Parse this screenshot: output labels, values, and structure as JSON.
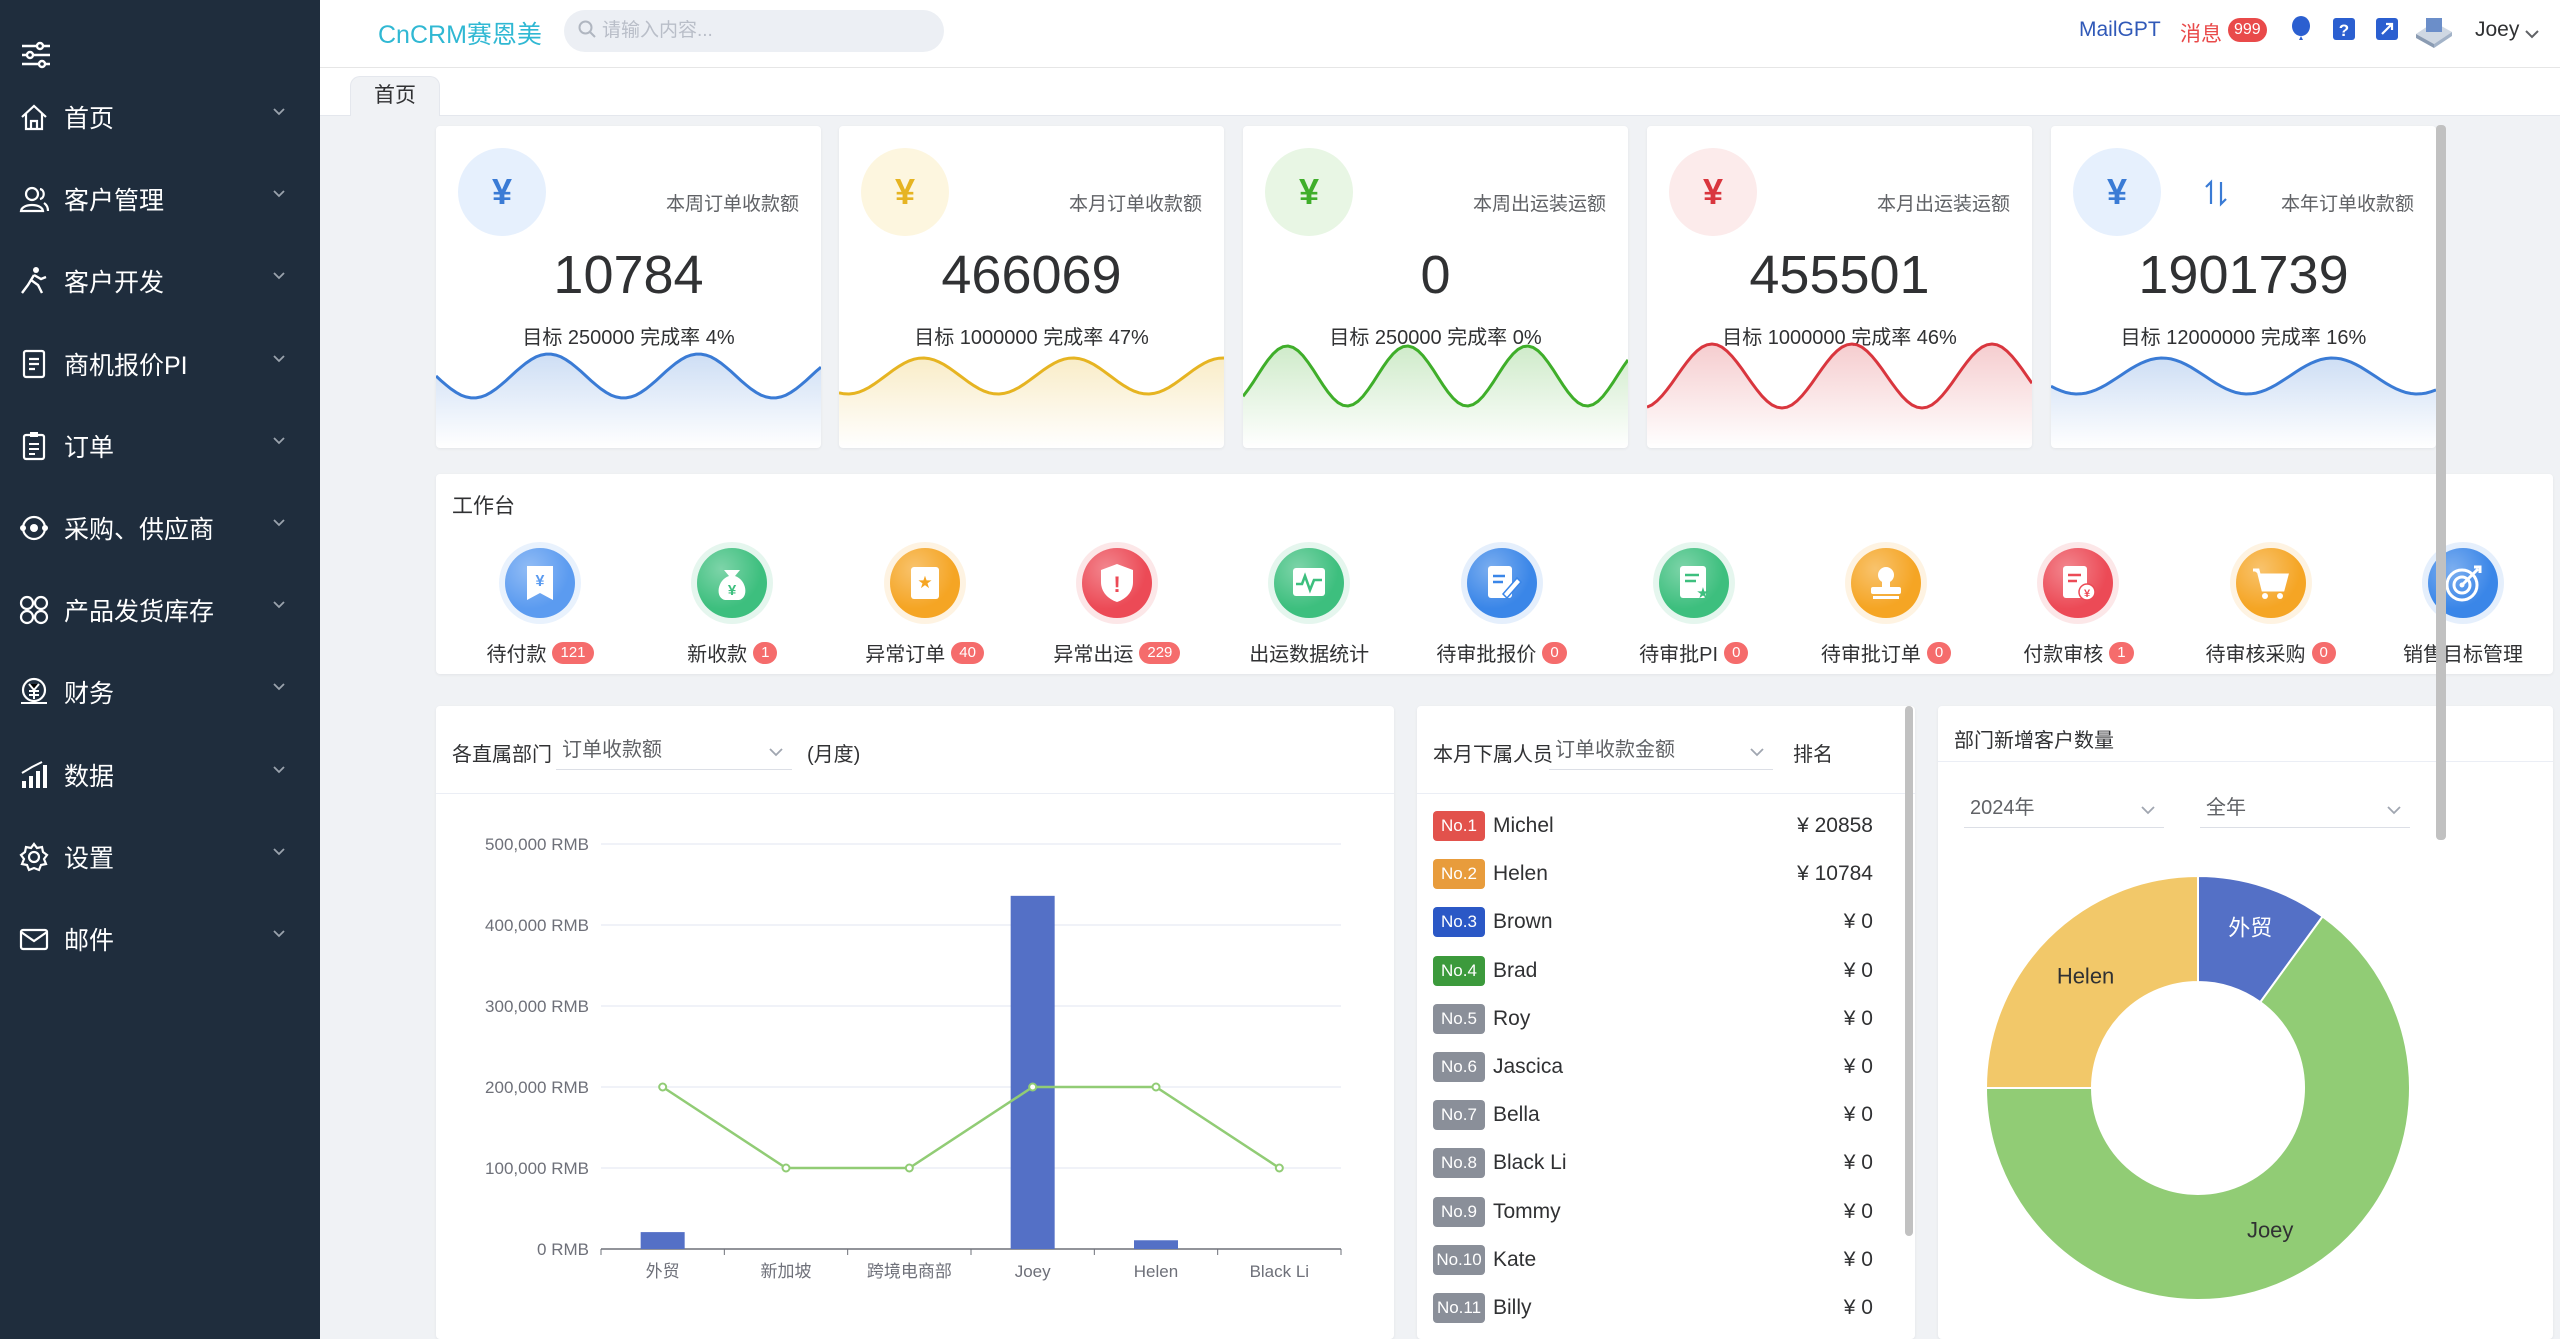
{
  "app": {
    "logo": "CnCRM赛恩美"
  },
  "search": {
    "placeholder": "请输入内容..."
  },
  "header": {
    "mailgpt": "MailGPT",
    "msg_label": "消息",
    "msg_count": "999",
    "user": "Joey"
  },
  "sidebar": {
    "items": [
      {
        "label": "首页",
        "icon": "home-icon"
      },
      {
        "label": "客户管理",
        "icon": "users-icon"
      },
      {
        "label": "客户开发",
        "icon": "runner-icon"
      },
      {
        "label": "商机报价PI",
        "icon": "document-icon"
      },
      {
        "label": "订单",
        "icon": "clipboard-icon"
      },
      {
        "label": "采购、供应商",
        "icon": "supplier-icon"
      },
      {
        "label": "产品发货库存",
        "icon": "grid-icon"
      },
      {
        "label": "财务",
        "icon": "finance-icon"
      },
      {
        "label": "数据",
        "icon": "data-icon"
      },
      {
        "label": "设置",
        "icon": "gear-icon"
      },
      {
        "label": "邮件",
        "icon": "mail-icon"
      }
    ]
  },
  "tabs": [
    {
      "label": "首页"
    }
  ],
  "stats": [
    {
      "label": "本周订单收款额",
      "value": "10784",
      "target": "目标 250000 完成率 4%",
      "symbol": "¥",
      "color": "#3a7bd5"
    },
    {
      "label": "本月订单收款额",
      "value": "466069",
      "target": "目标 1000000 完成率 47%",
      "symbol": "¥",
      "color": "#e6b422"
    },
    {
      "label": "本周出运装运额",
      "value": "0",
      "target": "目标 250000 完成率 0%",
      "symbol": "¥",
      "color": "#3fae2a"
    },
    {
      "label": "本月出运装运额",
      "value": "455501",
      "target": "目标 1000000 完成率 46%",
      "symbol": "¥",
      "color": "#d9363e"
    },
    {
      "label": "本年订单收款额",
      "value": "1901739",
      "target": "目标 12000000 完成率 16%",
      "symbol": "¥",
      "color": "#3a7bd5"
    }
  ],
  "workbench": {
    "title": "工作台",
    "items": [
      {
        "label": "待付款",
        "badge": "121",
        "icon": "ticket-yen-icon",
        "color": "#5b9bf0"
      },
      {
        "label": "新收款",
        "badge": "1",
        "icon": "money-bag-icon",
        "color": "#3dbf7e"
      },
      {
        "label": "异常订单",
        "badge": "40",
        "icon": "star-doc-icon",
        "color": "#f5a524"
      },
      {
        "label": "异常出运",
        "badge": "229",
        "icon": "shield-alert-icon",
        "color": "#ec4a56"
      },
      {
        "label": "出运数据统计",
        "badge": "",
        "icon": "pulse-chart-icon",
        "color": "#3dbf7e"
      },
      {
        "label": "待审批报价",
        "badge": "0",
        "icon": "edit-doc-icon",
        "color": "#3a86e8"
      },
      {
        "label": "待审批PI",
        "badge": "0",
        "icon": "doc-star-icon",
        "color": "#3dbf7e"
      },
      {
        "label": "待审批订单",
        "badge": "0",
        "icon": "stamp-icon",
        "color": "#f5a524"
      },
      {
        "label": "付款审核",
        "badge": "1",
        "icon": "invoice-yen-icon",
        "color": "#ec4a56"
      },
      {
        "label": "待审核采购",
        "badge": "0",
        "icon": "cart-icon",
        "color": "#f5a524"
      },
      {
        "label": "销售目标管理",
        "badge": "",
        "icon": "target-icon",
        "color": "#3a86e8"
      }
    ]
  },
  "dept_panel": {
    "title": "各直属部门",
    "select": "订单收款额",
    "period": "(月度)"
  },
  "ranking": {
    "title": "本月下属人员",
    "select": "订单收款金额",
    "rank_label": "排名",
    "rows": [
      {
        "no": "No.1",
        "name": "Michel",
        "amount": "¥  20858",
        "color": "#e2524c"
      },
      {
        "no": "No.2",
        "name": "Helen",
        "amount": "¥  10784",
        "color": "#e89c3c"
      },
      {
        "no": "No.3",
        "name": "Brown",
        "amount": "¥  0",
        "color": "#2b58c6"
      },
      {
        "no": "No.4",
        "name": "Brad",
        "amount": "¥  0",
        "color": "#3c9a3c"
      },
      {
        "no": "No.5",
        "name": "Roy",
        "amount": "¥  0",
        "color": "#8a8f99"
      },
      {
        "no": "No.6",
        "name": "Jascica",
        "amount": "¥  0",
        "color": "#8a8f99"
      },
      {
        "no": "No.7",
        "name": "Bella",
        "amount": "¥  0",
        "color": "#8a8f99"
      },
      {
        "no": "No.8",
        "name": "Black Li",
        "amount": "¥  0",
        "color": "#8a8f99"
      },
      {
        "no": "No.9",
        "name": "Tommy",
        "amount": "¥  0",
        "color": "#8a8f99"
      },
      {
        "no": "No.10",
        "name": "Kate",
        "amount": "¥  0",
        "color": "#8a8f99"
      },
      {
        "no": "No.11",
        "name": "Billy",
        "amount": "¥  0",
        "color": "#8a8f99"
      }
    ]
  },
  "new_customers": {
    "title": "部门新增客户数量",
    "year": "2024年",
    "range": "全年"
  },
  "chart_data": [
    {
      "type": "bar",
      "categories": [
        "外贸",
        "新加坡",
        "跨境电商部",
        "Joey",
        "Helen",
        "Black Li"
      ],
      "series": [
        {
          "type": "bar",
          "values": [
            20858,
            0,
            0,
            436000,
            10784,
            0
          ],
          "color": "#5470c6"
        },
        {
          "type": "line",
          "values": [
            200000,
            100000,
            100000,
            200000,
            200000,
            100000
          ],
          "color": "#91cc75"
        }
      ],
      "yticks": [
        "0 RMB",
        "100,000 RMB",
        "200,000 RMB",
        "300,000 RMB",
        "400,000 RMB",
        "500,000 RMB"
      ],
      "ylim": [
        0,
        500000
      ],
      "grid": true
    },
    {
      "type": "pie",
      "labels": [
        "外贸",
        "Joey",
        "Helen"
      ],
      "values": [
        10,
        65,
        25
      ],
      "colors": [
        "#5470c6",
        "#91cc75",
        "#f2c869"
      ],
      "donut": true
    }
  ]
}
